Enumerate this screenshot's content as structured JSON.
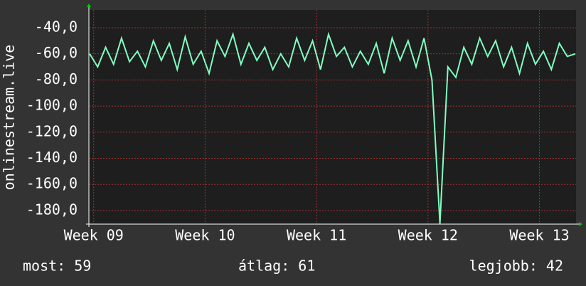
{
  "chart_data": {
    "type": "line",
    "y_label": "onlinestream.live",
    "x": [
      -0.25,
      0.25,
      0.75,
      1.25,
      1.75,
      2.25,
      2.75,
      3.25,
      3.75,
      4.25,
      4.75,
      5.25,
      5.75,
      6.25,
      6.75,
      7.25,
      7.75,
      8.25,
      8.75,
      9.25,
      9.75,
      10.25,
      10.75,
      11.25,
      11.75,
      12.25,
      12.75,
      13.25,
      13.75,
      14.25,
      14.75,
      15.25,
      15.75,
      16.25,
      16.75,
      17.25,
      17.75,
      18.25,
      18.75,
      19.25,
      19.75,
      20.25,
      20.75,
      21.25,
      21.75,
      22.25,
      22.75,
      23.25,
      23.75,
      24.25,
      24.75,
      25.25,
      25.75,
      26.25,
      26.75,
      27.25,
      27.75,
      28.25,
      28.75,
      29.25,
      29.75,
      30.25
    ],
    "series": [
      {
        "color": "#80ffc0",
        "values": [
          -60,
          -70,
          -55,
          -68,
          -48,
          -66,
          -58,
          -70,
          -50,
          -65,
          -52,
          -72,
          -47,
          -68,
          -58,
          -75,
          -50,
          -62,
          -45,
          -68,
          -52,
          -65,
          -55,
          -72,
          -60,
          -70,
          -48,
          -65,
          -50,
          -72,
          -45,
          -62,
          -55,
          -70,
          -58,
          -68,
          -52,
          -75,
          -48,
          -65,
          -50,
          -70,
          -48,
          -80,
          -190,
          -70,
          -78,
          -55,
          -68,
          -48,
          -62,
          -50,
          -70,
          -55,
          -75,
          -52,
          -68,
          -58,
          -72,
          -52,
          -62,
          -60
        ]
      }
    ],
    "xlim": [
      -0.3,
      30.3
    ],
    "xticks": [
      {
        "value": 0,
        "label": "Week 09"
      },
      {
        "value": 7,
        "label": "Week 10"
      },
      {
        "value": 14,
        "label": "Week 11"
      },
      {
        "value": 21,
        "label": "Week 12"
      },
      {
        "value": 28,
        "label": "Week 13"
      }
    ],
    "ylim": [
      -190.4,
      -26.4
    ],
    "yticks": [
      {
        "value": -40,
        "label": "-40,0"
      },
      {
        "value": -60,
        "label": "-60,0"
      },
      {
        "value": -80,
        "label": "-80,0"
      },
      {
        "value": -100,
        "label": "-100,0"
      },
      {
        "value": -120,
        "label": "-120,0"
      },
      {
        "value": -140,
        "label": "-140,0"
      },
      {
        "value": -160,
        "label": "-160,0"
      },
      {
        "value": -180,
        "label": "-180,0"
      }
    ],
    "grid": true,
    "footer": {
      "current": "most: 59",
      "average": "átlag: 61",
      "best": "legjobb: 42"
    }
  }
}
